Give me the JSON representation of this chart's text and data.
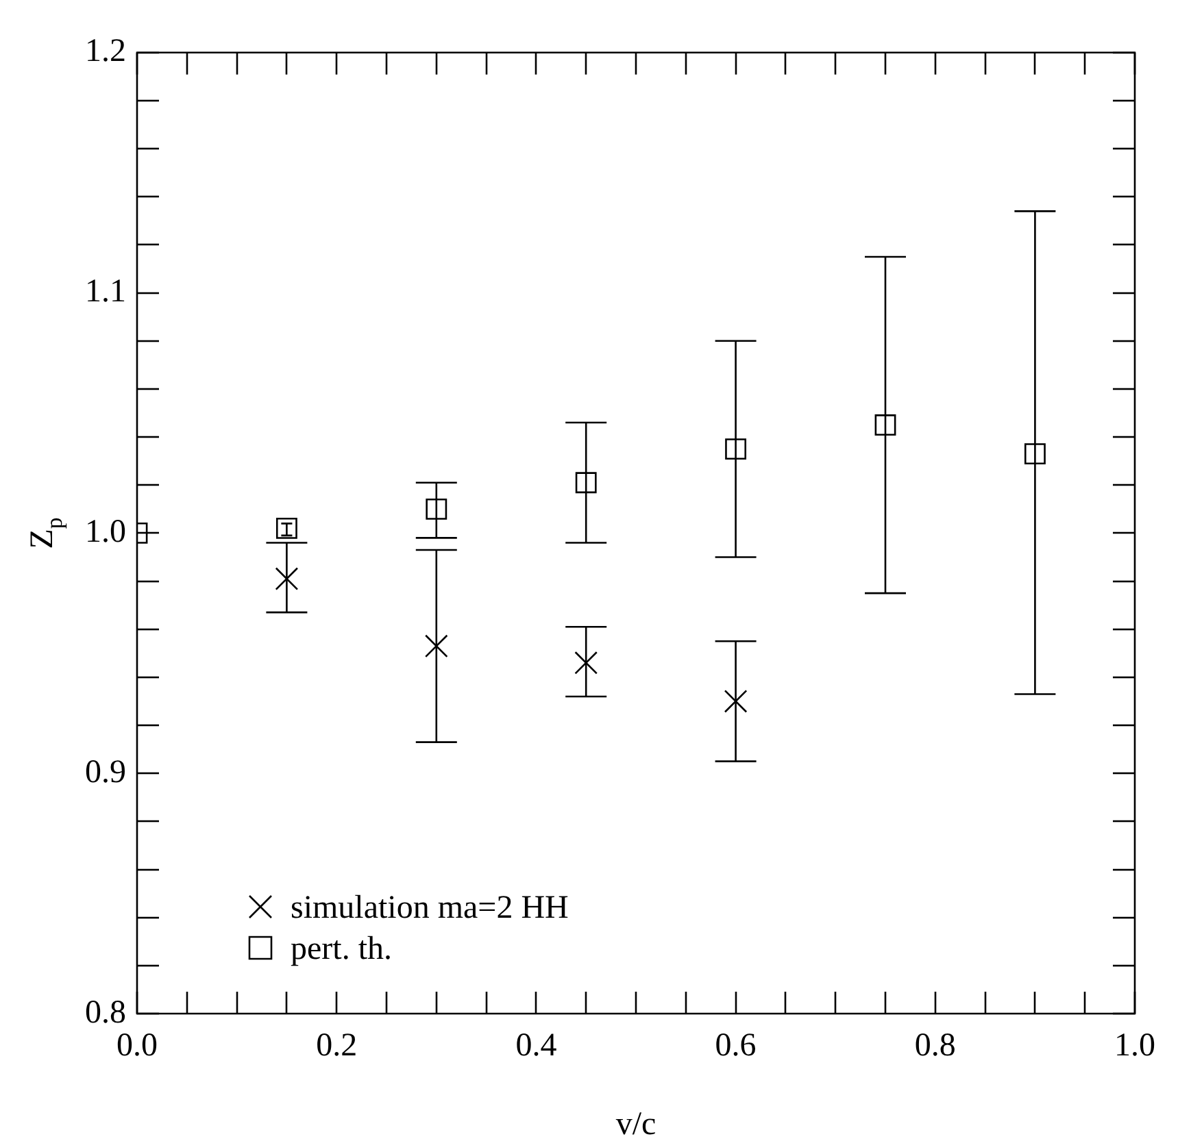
{
  "chart_data": {
    "type": "scatter",
    "xlabel": "v/c",
    "ylabel": "Z$_{p}$",
    "xlim": [
      0,
      1
    ],
    "ylim": [
      0.8,
      1.2
    ],
    "xticks": [
      {
        "value": 0,
        "label": "0.0"
      },
      {
        "value": 0.05,
        "label": null
      },
      {
        "value": 0.1,
        "label": null
      },
      {
        "value": 0.15,
        "label": null
      },
      {
        "value": 0.2,
        "label": "0.2"
      },
      {
        "value": 0.25,
        "label": null
      },
      {
        "value": 0.3,
        "label": null
      },
      {
        "value": 0.35,
        "label": null
      },
      {
        "value": 0.4,
        "label": "0.4"
      },
      {
        "value": 0.45,
        "label": null
      },
      {
        "value": 0.5,
        "label": null
      },
      {
        "value": 0.55,
        "label": null
      },
      {
        "value": 0.6,
        "label": "0.6"
      },
      {
        "value": 0.65,
        "label": null
      },
      {
        "value": 0.7,
        "label": null
      },
      {
        "value": 0.75,
        "label": null
      },
      {
        "value": 0.8,
        "label": "0.8"
      },
      {
        "value": 0.85,
        "label": null
      },
      {
        "value": 0.9,
        "label": null
      },
      {
        "value": 0.95,
        "label": null
      },
      {
        "value": 1,
        "label": "1.0"
      }
    ],
    "yticks": [
      0.8,
      {
        "value": 0.82,
        "label": null
      },
      {
        "value": 0.84,
        "label": null
      },
      {
        "value": 0.86,
        "label": null
      },
      {
        "value": 0.88,
        "label": null
      },
      0.9,
      {
        "value": 0.92,
        "label": null
      },
      {
        "value": 0.94,
        "label": null
      },
      {
        "value": 0.96,
        "label": null
      },
      {
        "value": 0.98,
        "label": null
      },
      {
        "value": 1,
        "label": "1.0"
      },
      {
        "value": 1.02,
        "label": null
      },
      {
        "value": 1.04,
        "label": null
      },
      {
        "value": 1.06,
        "label": null
      },
      {
        "value": 1.08,
        "label": null
      },
      1.1,
      {
        "value": 1.12,
        "label": null
      },
      {
        "value": 1.14,
        "label": null
      },
      {
        "value": 1.16,
        "label": null
      },
      {
        "value": 1.18,
        "label": null
      },
      1.2
    ],
    "grid": false,
    "legend": "bottom left",
    "series": [
      {
        "name": "simulation ma=2 HH",
        "color": "#000000",
        "marker": "cross",
        "x": [
          0.15,
          0.3,
          0.45,
          0.6
        ],
        "values": [
          0.981,
          0.953,
          0.946,
          0.93
        ],
        "errors": [
          [
            0.967,
            0.996
          ],
          [
            0.913,
            0.993
          ],
          [
            0.932,
            0.961
          ],
          [
            0.905,
            0.955
          ]
        ]
      },
      {
        "name": "pert. th.",
        "color": "#000000",
        "marker": "square",
        "x": [
          0,
          0.15,
          0.3,
          0.45,
          0.6,
          0.75,
          0.9
        ],
        "values": [
          1.0,
          1.002,
          1.01,
          1.021,
          1.035,
          1.045,
          1.033
        ],
        "errors": [
          null,
          [
            0.999,
            1.004
          ],
          [
            0.998,
            1.021
          ],
          [
            0.996,
            1.046
          ],
          [
            0.99,
            1.08
          ],
          [
            0.975,
            1.115
          ],
          [
            0.933,
            1.134
          ]
        ]
      }
    ]
  }
}
